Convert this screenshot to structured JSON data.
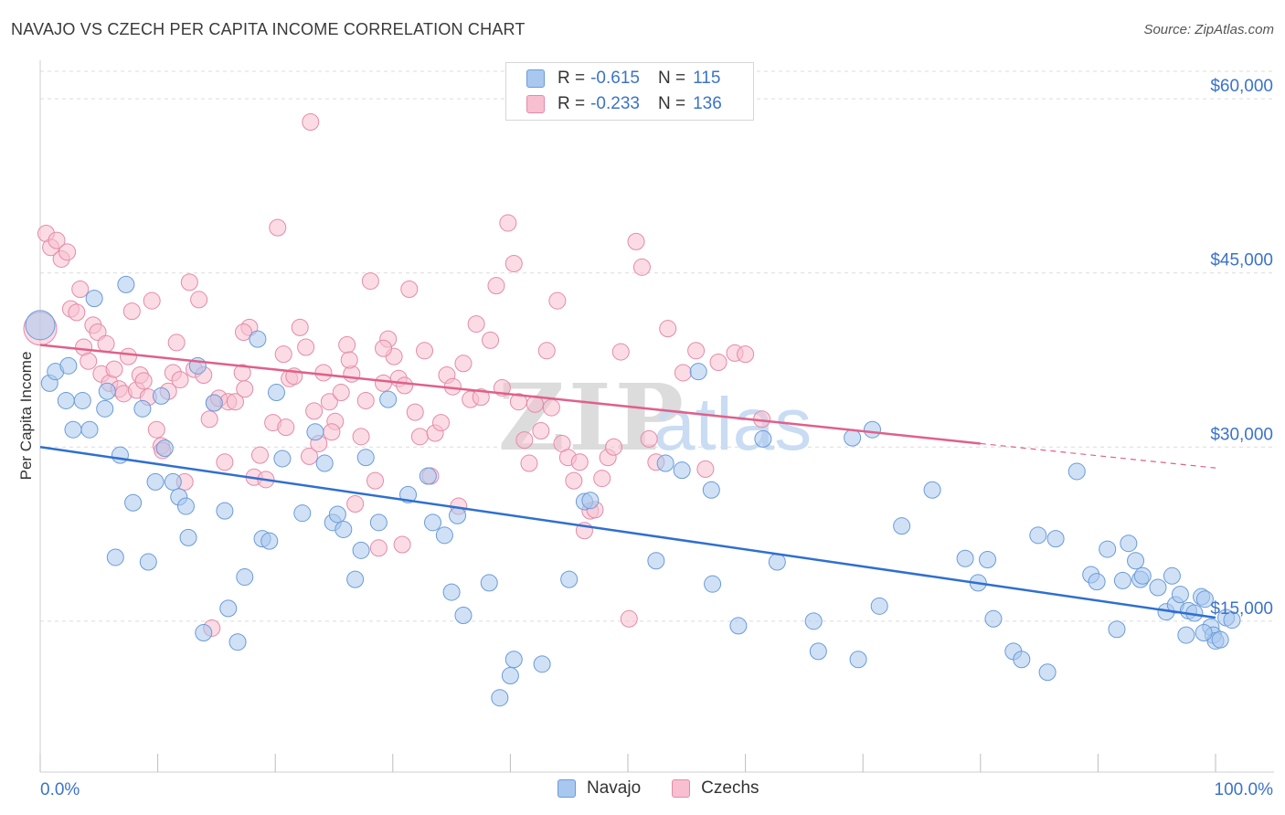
{
  "title": "NAVAJO VS CZECH PER CAPITA INCOME CORRELATION CHART",
  "source": "Source: ZipAtlas.com",
  "watermark": {
    "zip": "ZIP",
    "atlas": "atlas"
  },
  "legend": {
    "rows": [
      {
        "r_label": "R =",
        "r_value": "-0.615",
        "n_label": "N =",
        "n_value": "115"
      },
      {
        "r_label": "R =",
        "r_value": "-0.233",
        "n_label": "N =",
        "n_value": "136"
      }
    ]
  },
  "colors": {
    "navajo_fill": "#a9c8ef",
    "navajo_stroke": "#6a9bd8",
    "navajo_line": "#2f6fd1",
    "czech_fill": "#f7bfd0",
    "czech_stroke": "#e58aa8",
    "czech_line": "#e0608a",
    "tick_label": "#3b73c9",
    "grid": "#dcdcdc"
  },
  "chart_data": {
    "type": "scatter",
    "xlabel": "",
    "ylabel": "Per Capita Income",
    "x_tick_labels": [
      "0.0%",
      "100.0%"
    ],
    "y_tick_labels": [
      "$15,000",
      "$30,000",
      "$45,000",
      "$60,000"
    ],
    "y_ticks": [
      15000,
      30000,
      45000,
      60000
    ],
    "xlim": [
      0,
      100
    ],
    "ylim": [
      2000,
      63000
    ],
    "legend_position": "top-center",
    "series": [
      {
        "name": "Navajo",
        "trend": {
          "x": [
            0,
            100
          ],
          "y": [
            30000,
            15300
          ]
        },
        "points": [
          [
            0,
            40500
          ],
          [
            0.8,
            35500
          ],
          [
            1.3,
            36500
          ],
          [
            2.2,
            34000
          ],
          [
            2.8,
            31500
          ],
          [
            2.4,
            37000
          ],
          [
            3.6,
            34000
          ],
          [
            4.2,
            31500
          ],
          [
            4.6,
            42800
          ],
          [
            5.5,
            33300
          ],
          [
            5.7,
            34800
          ],
          [
            6.4,
            20500
          ],
          [
            6.8,
            29300
          ],
          [
            7.3,
            44000
          ],
          [
            7.9,
            25200
          ],
          [
            8.7,
            33300
          ],
          [
            9.2,
            20100
          ],
          [
            9.8,
            27000
          ],
          [
            10.3,
            34400
          ],
          [
            10.6,
            29900
          ],
          [
            11.3,
            27000
          ],
          [
            11.8,
            25700
          ],
          [
            12.4,
            24900
          ],
          [
            12.6,
            22200
          ],
          [
            13.4,
            37000
          ],
          [
            13.9,
            14000
          ],
          [
            14.8,
            33800
          ],
          [
            15.7,
            24500
          ],
          [
            16.0,
            16100
          ],
          [
            16.8,
            13200
          ],
          [
            17.4,
            18800
          ],
          [
            18.5,
            39300
          ],
          [
            18.9,
            22100
          ],
          [
            19.5,
            21900
          ],
          [
            20.1,
            34700
          ],
          [
            20.6,
            29000
          ],
          [
            22.3,
            24300
          ],
          [
            23.4,
            31300
          ],
          [
            24.2,
            28600
          ],
          [
            24.9,
            23500
          ],
          [
            25.3,
            24200
          ],
          [
            25.8,
            22900
          ],
          [
            26.8,
            18600
          ],
          [
            27.3,
            21100
          ],
          [
            27.7,
            29100
          ],
          [
            28.8,
            23500
          ],
          [
            29.6,
            34100
          ],
          [
            31.3,
            25900
          ],
          [
            33.0,
            27500
          ],
          [
            33.4,
            23500
          ],
          [
            34.4,
            22400
          ],
          [
            35.0,
            17500
          ],
          [
            35.5,
            24100
          ],
          [
            36.0,
            15500
          ],
          [
            38.2,
            18300
          ],
          [
            39.1,
            8400
          ],
          [
            40.0,
            10300
          ],
          [
            40.3,
            11700
          ],
          [
            42.7,
            11300
          ],
          [
            45.0,
            18600
          ],
          [
            46.3,
            25300
          ],
          [
            46.8,
            25400
          ],
          [
            52.4,
            20200
          ],
          [
            53.2,
            28600
          ],
          [
            54.6,
            28000
          ],
          [
            56.0,
            36500
          ],
          [
            57.2,
            18200
          ],
          [
            57.1,
            26300
          ],
          [
            59.4,
            14600
          ],
          [
            61.5,
            30700
          ],
          [
            62.7,
            20100
          ],
          [
            65.8,
            15000
          ],
          [
            66.2,
            12400
          ],
          [
            69.1,
            30800
          ],
          [
            69.6,
            11700
          ],
          [
            70.8,
            31500
          ],
          [
            71.4,
            16300
          ],
          [
            73.3,
            23200
          ],
          [
            75.9,
            26300
          ],
          [
            78.7,
            20400
          ],
          [
            79.8,
            18300
          ],
          [
            80.6,
            20300
          ],
          [
            81.1,
            15200
          ],
          [
            82.8,
            12400
          ],
          [
            83.5,
            11700
          ],
          [
            84.9,
            22400
          ],
          [
            86.4,
            22100
          ],
          [
            85.7,
            10600
          ],
          [
            88.2,
            27900
          ],
          [
            89.4,
            19000
          ],
          [
            89.9,
            18400
          ],
          [
            90.8,
            21200
          ],
          [
            91.6,
            14300
          ],
          [
            92.1,
            18500
          ],
          [
            92.6,
            21700
          ],
          [
            93.2,
            20200
          ],
          [
            93.6,
            18600
          ],
          [
            93.8,
            18900
          ],
          [
            95.1,
            17900
          ],
          [
            95.8,
            15800
          ],
          [
            96.3,
            18900
          ],
          [
            96.6,
            16400
          ],
          [
            97.0,
            17300
          ],
          [
            97.7,
            15900
          ],
          [
            98.2,
            15700
          ],
          [
            98.8,
            17100
          ],
          [
            99.1,
            16900
          ],
          [
            99.6,
            14500
          ],
          [
            99.8,
            13800
          ],
          [
            100.0,
            13300
          ],
          [
            100.4,
            13400
          ],
          [
            100.9,
            15300
          ],
          [
            101.4,
            15100
          ],
          [
            99.0,
            14000
          ],
          [
            97.5,
            13800
          ]
        ]
      },
      {
        "name": "Czechs",
        "trend": {
          "x": [
            0,
            80
          ],
          "y": [
            38800,
            30300
          ]
        },
        "trend_dashed": {
          "x": [
            80,
            100
          ],
          "y": [
            30300,
            28200
          ]
        },
        "points": [
          [
            0,
            40200
          ],
          [
            0.5,
            48400
          ],
          [
            0.9,
            47200
          ],
          [
            1.4,
            47800
          ],
          [
            1.8,
            46200
          ],
          [
            2.3,
            46800
          ],
          [
            2.6,
            41900
          ],
          [
            3.1,
            41600
          ],
          [
            3.4,
            43600
          ],
          [
            3.7,
            38600
          ],
          [
            4.1,
            37400
          ],
          [
            4.5,
            40500
          ],
          [
            4.9,
            39900
          ],
          [
            5.2,
            36300
          ],
          [
            5.6,
            38900
          ],
          [
            5.9,
            35500
          ],
          [
            6.3,
            36700
          ],
          [
            6.7,
            35000
          ],
          [
            7.1,
            34600
          ],
          [
            7.5,
            37800
          ],
          [
            7.8,
            41700
          ],
          [
            8.2,
            34900
          ],
          [
            8.5,
            36200
          ],
          [
            8.8,
            35700
          ],
          [
            9.2,
            34300
          ],
          [
            9.5,
            42600
          ],
          [
            9.9,
            31500
          ],
          [
            10.3,
            30100
          ],
          [
            10.4,
            29700
          ],
          [
            10.9,
            34800
          ],
          [
            11.3,
            36400
          ],
          [
            11.6,
            39000
          ],
          [
            11.9,
            35800
          ],
          [
            12.3,
            27000
          ],
          [
            12.7,
            44200
          ],
          [
            13.1,
            36700
          ],
          [
            13.5,
            42700
          ],
          [
            13.9,
            36200
          ],
          [
            14.4,
            32400
          ],
          [
            14.8,
            33800
          ],
          [
            15.2,
            34200
          ],
          [
            15.7,
            28700
          ],
          [
            16.0,
            33900
          ],
          [
            16.6,
            33900
          ],
          [
            17.2,
            36400
          ],
          [
            17.4,
            35000
          ],
          [
            17.8,
            40300
          ],
          [
            18.2,
            27400
          ],
          [
            18.7,
            29300
          ],
          [
            19.2,
            27200
          ],
          [
            19.8,
            32100
          ],
          [
            20.2,
            48900
          ],
          [
            20.7,
            38000
          ],
          [
            21.2,
            35900
          ],
          [
            21.6,
            36100
          ],
          [
            22.1,
            40300
          ],
          [
            22.6,
            38600
          ],
          [
            22.9,
            29200
          ],
          [
            23.3,
            33100
          ],
          [
            23.7,
            30300
          ],
          [
            24.1,
            36400
          ],
          [
            24.6,
            33900
          ],
          [
            25.1,
            32200
          ],
          [
            25.6,
            34700
          ],
          [
            26.1,
            38800
          ],
          [
            26.5,
            36300
          ],
          [
            26.8,
            25100
          ],
          [
            27.3,
            30900
          ],
          [
            27.7,
            34000
          ],
          [
            28.1,
            44300
          ],
          [
            28.5,
            27100
          ],
          [
            28.8,
            21300
          ],
          [
            29.2,
            35500
          ],
          [
            29.6,
            39300
          ],
          [
            30.1,
            37800
          ],
          [
            30.5,
            35900
          ],
          [
            31.0,
            35300
          ],
          [
            31.4,
            43600
          ],
          [
            31.9,
            33000
          ],
          [
            32.3,
            30900
          ],
          [
            32.7,
            38300
          ],
          [
            33.2,
            27500
          ],
          [
            33.6,
            31200
          ],
          [
            34.1,
            32100
          ],
          [
            34.6,
            36200
          ],
          [
            35.1,
            35200
          ],
          [
            35.6,
            24900
          ],
          [
            36.0,
            37200
          ],
          [
            36.6,
            34100
          ],
          [
            37.1,
            40600
          ],
          [
            37.5,
            34300
          ],
          [
            38.3,
            39200
          ],
          [
            38.8,
            43900
          ],
          [
            39.3,
            35100
          ],
          [
            39.8,
            49300
          ],
          [
            40.3,
            45800
          ],
          [
            40.7,
            33900
          ],
          [
            41.2,
            30600
          ],
          [
            41.6,
            28600
          ],
          [
            42.1,
            33700
          ],
          [
            42.6,
            31400
          ],
          [
            43.1,
            38300
          ],
          [
            43.5,
            33400
          ],
          [
            44.0,
            42600
          ],
          [
            44.4,
            30300
          ],
          [
            44.9,
            29100
          ],
          [
            45.4,
            27100
          ],
          [
            45.9,
            28700
          ],
          [
            46.3,
            22800
          ],
          [
            46.8,
            24500
          ],
          [
            47.2,
            24600
          ],
          [
            47.8,
            27300
          ],
          [
            48.3,
            29100
          ],
          [
            48.8,
            30000
          ],
          [
            49.4,
            38200
          ],
          [
            50.1,
            15200
          ],
          [
            50.7,
            47700
          ],
          [
            51.2,
            45500
          ],
          [
            51.8,
            30700
          ],
          [
            52.4,
            28700
          ],
          [
            53.4,
            40200
          ],
          [
            54.7,
            36400
          ],
          [
            55.8,
            38300
          ],
          [
            56.6,
            28100
          ],
          [
            57.7,
            37300
          ],
          [
            59.1,
            38100
          ],
          [
            60.0,
            38000
          ],
          [
            61.4,
            32400
          ],
          [
            14.6,
            14400
          ],
          [
            17.3,
            39900
          ],
          [
            20.9,
            31700
          ],
          [
            23.0,
            58000
          ],
          [
            24.8,
            31300
          ],
          [
            26.3,
            37500
          ],
          [
            29.2,
            38500
          ],
          [
            30.8,
            21600
          ]
        ]
      }
    ]
  }
}
